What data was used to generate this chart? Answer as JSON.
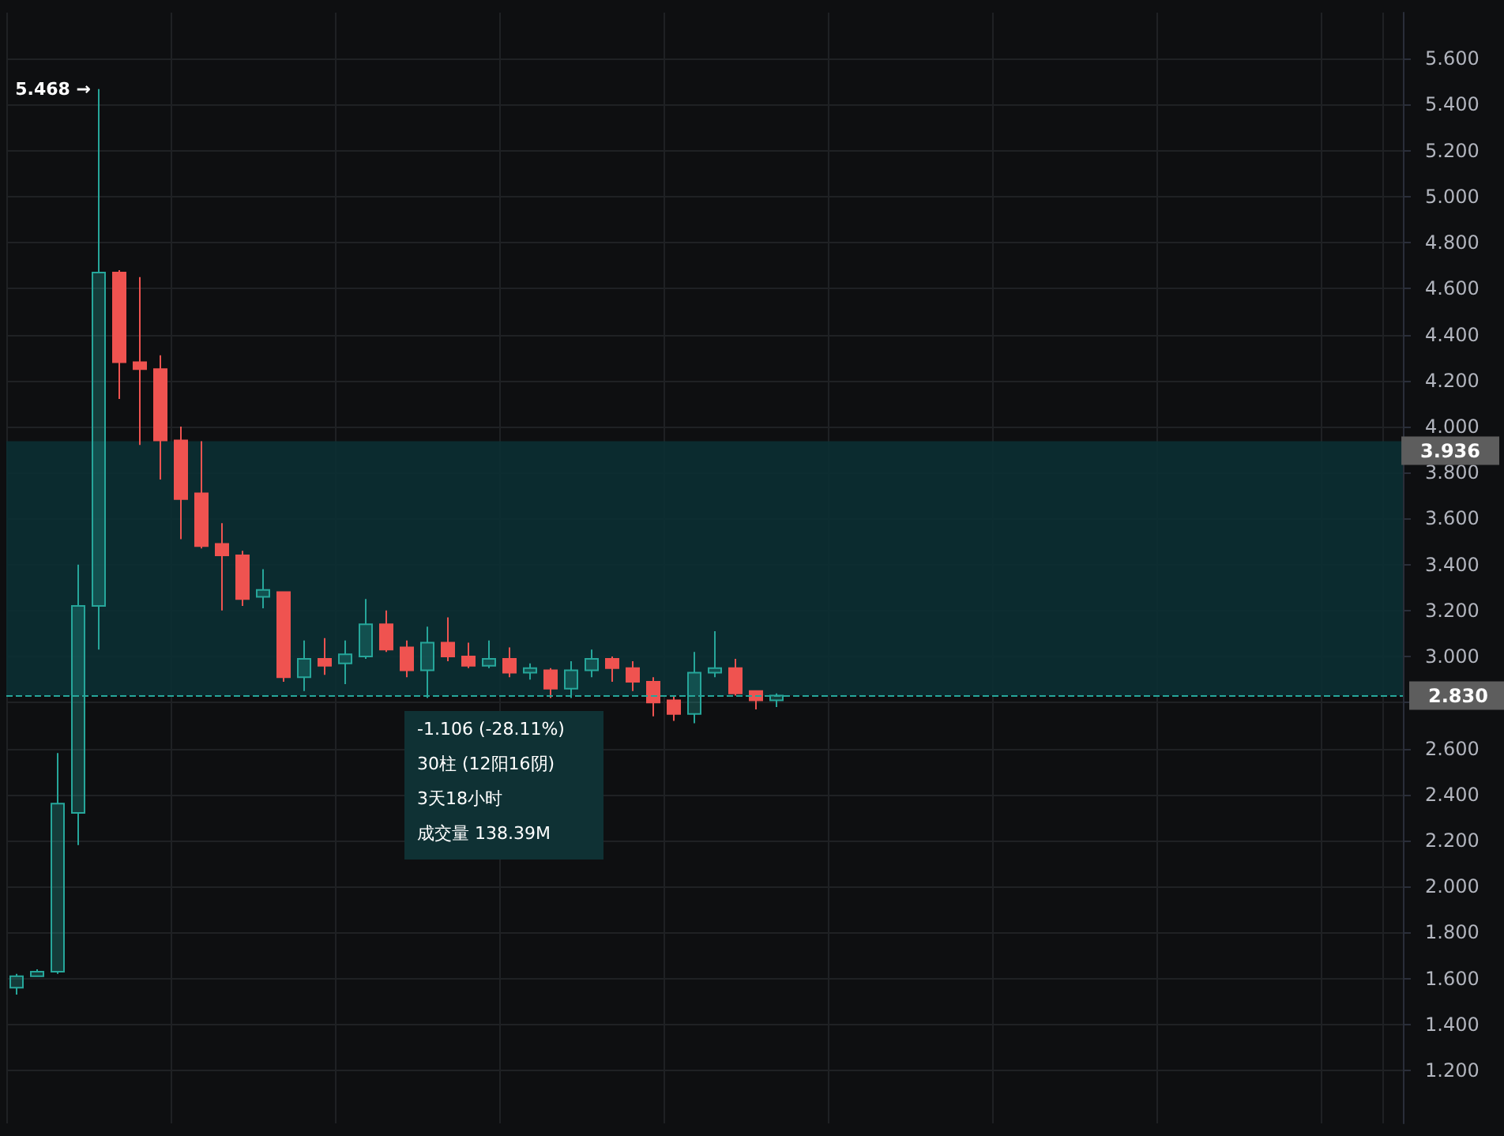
{
  "chart_data": {
    "type": "candlestick",
    "categories": [
      null,
      null,
      null,
      null,
      null,
      null,
      null,
      null,
      null,
      null,
      null,
      null,
      null,
      null,
      null,
      null,
      null,
      null,
      null,
      null,
      null,
      null,
      null,
      null,
      null,
      null,
      null,
      null,
      null,
      null,
      null,
      null,
      null,
      null,
      null,
      null,
      null,
      null,
      null,
      null,
      null,
      null,
      null,
      null,
      null,
      null,
      null,
      null,
      null,
      null,
      null,
      null,
      null,
      null,
      null,
      null,
      null,
      null,
      null,
      null,
      null,
      null,
      null,
      null,
      null,
      null,
      null,
      null
    ],
    "ohlc": [
      [
        1.56,
        1.62,
        1.53,
        1.61
      ],
      [
        1.61,
        1.64,
        1.61,
        1.63
      ],
      [
        1.63,
        2.58,
        1.62,
        2.36
      ],
      [
        2.32,
        3.4,
        2.18,
        3.22
      ],
      [
        3.22,
        5.468,
        3.03,
        4.67
      ],
      [
        4.67,
        4.68,
        4.12,
        4.28
      ],
      [
        4.28,
        4.65,
        3.92,
        4.25
      ],
      [
        4.25,
        4.31,
        3.77,
        3.94
      ],
      [
        3.94,
        4.0,
        3.51,
        3.685
      ],
      [
        3.71,
        3.936,
        3.47,
        3.48
      ],
      [
        3.49,
        3.58,
        3.2,
        3.44
      ],
      [
        3.44,
        3.46,
        3.22,
        3.25
      ],
      [
        3.26,
        3.38,
        3.21,
        3.29
      ],
      [
        3.28,
        3.28,
        2.89,
        2.91
      ],
      [
        2.91,
        3.07,
        2.85,
        2.99
      ],
      [
        2.99,
        3.08,
        2.92,
        2.96
      ],
      [
        2.97,
        3.07,
        2.88,
        3.01
      ],
      [
        3.0,
        3.25,
        2.99,
        3.14
      ],
      [
        3.14,
        3.2,
        3.02,
        3.03
      ],
      [
        3.04,
        3.07,
        2.91,
        2.94
      ],
      [
        2.94,
        3.13,
        2.82,
        3.06
      ],
      [
        3.06,
        3.17,
        2.98,
        3.0
      ],
      [
        3.0,
        3.06,
        2.95,
        2.96
      ],
      [
        2.96,
        3.07,
        2.95,
        2.99
      ],
      [
        2.99,
        3.04,
        2.91,
        2.93
      ],
      [
        2.93,
        2.97,
        2.9,
        2.95
      ],
      [
        2.94,
        2.95,
        2.82,
        2.86
      ],
      [
        2.86,
        2.98,
        2.82,
        2.94
      ],
      [
        2.94,
        3.03,
        2.91,
        2.99
      ],
      [
        2.99,
        3.0,
        2.89,
        2.95
      ],
      [
        2.95,
        2.98,
        2.85,
        2.89
      ],
      [
        2.89,
        2.91,
        2.74,
        2.8
      ],
      [
        2.81,
        2.83,
        2.72,
        2.75
      ],
      [
        2.75,
        3.02,
        2.71,
        2.93
      ],
      [
        2.93,
        3.11,
        2.91,
        2.95
      ],
      [
        2.95,
        2.99,
        2.83,
        2.84
      ],
      [
        2.85,
        2.85,
        2.77,
        2.81
      ],
      [
        2.81,
        2.84,
        2.78,
        2.83
      ],
      null,
      null,
      null,
      null,
      null,
      null,
      null,
      null,
      null,
      null,
      null,
      null,
      null,
      null,
      null,
      null,
      null,
      null,
      null,
      null,
      null,
      null,
      null,
      null,
      null,
      null,
      null,
      null,
      null,
      null
    ],
    "ylim": [
      0.97,
      5.8
    ],
    "yticks": [
      {
        "value": 1.2,
        "label": "1.200"
      },
      {
        "value": 1.4,
        "label": "1.400"
      },
      {
        "value": 1.6,
        "label": "1.600"
      },
      {
        "value": 1.8,
        "label": "1.800"
      },
      {
        "value": 2.0,
        "label": "2.000"
      },
      {
        "value": 2.2,
        "label": "2.200"
      },
      {
        "value": 2.4,
        "label": "2.400"
      },
      {
        "value": 2.6,
        "label": "2.600"
      },
      {
        "value": 2.8,
        "label": null
      },
      {
        "value": 3.0,
        "label": "3.000"
      },
      {
        "value": 3.2,
        "label": "3.200"
      },
      {
        "value": 3.4,
        "label": "3.400"
      },
      {
        "value": 3.6,
        "label": "3.600"
      },
      {
        "value": 3.8,
        "label": "3.800"
      },
      {
        "value": 4.0,
        "label": "4.000"
      },
      {
        "value": 4.2,
        "label": "4.200"
      },
      {
        "value": 4.4,
        "label": "4.400"
      },
      {
        "value": 4.6,
        "label": "4.600"
      },
      {
        "value": 4.8,
        "label": "4.800"
      },
      {
        "value": 5.0,
        "label": "5.000"
      },
      {
        "value": 5.2,
        "label": "5.200"
      },
      {
        "value": 5.4,
        "label": "5.400"
      },
      {
        "value": 5.6,
        "label": "5.600"
      }
    ],
    "grid": true,
    "tick_labels": "y",
    "ref_lines": [
      {
        "axis": "y",
        "value": 2.83,
        "label": "2.830",
        "color": "#26a69a",
        "line_style": "dashed"
      }
    ],
    "bands": [
      {
        "axis": "y",
        "from": 2.83,
        "to": 3.936,
        "label": "3.936",
        "color": "#0b2f33"
      }
    ],
    "annotations": [
      "5.468 →",
      "-1.106 (-28.11%)",
      "30柱 (12阳16阴)",
      "3天18小时",
      "成交量 138.39M"
    ]
  }
}
